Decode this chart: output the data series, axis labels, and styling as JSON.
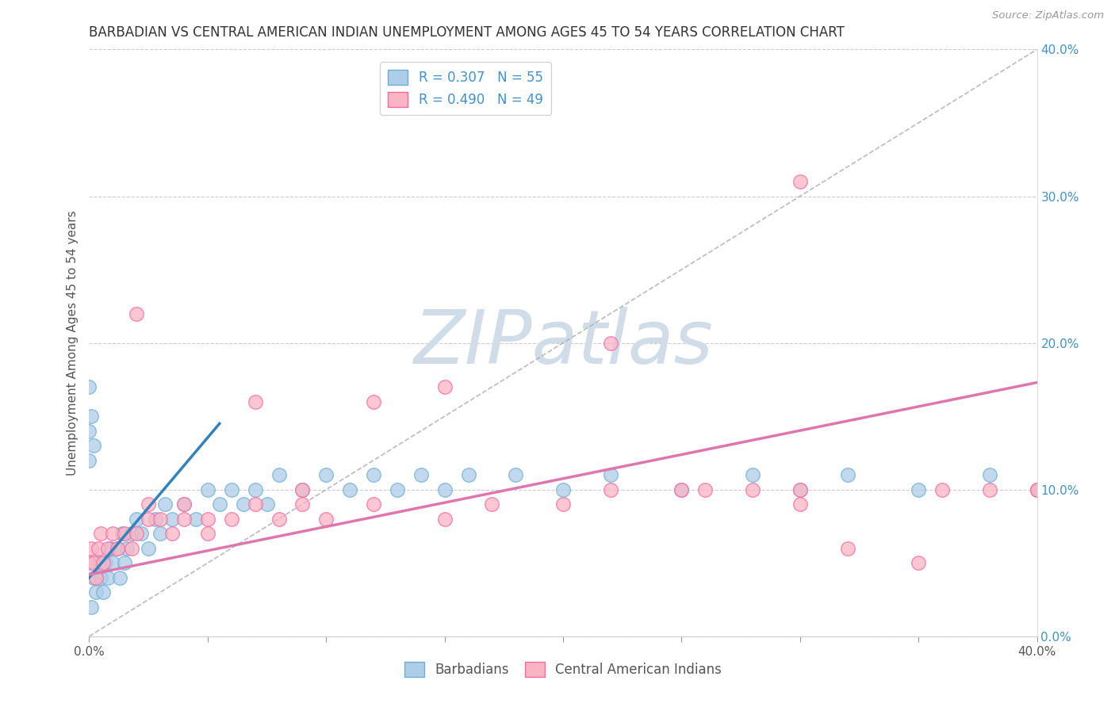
{
  "title": "BARBADIAN VS CENTRAL AMERICAN INDIAN UNEMPLOYMENT AMONG AGES 45 TO 54 YEARS CORRELATION CHART",
  "source": "Source: ZipAtlas.com",
  "ylabel": "Unemployment Among Ages 45 to 54 years",
  "xlim": [
    0,
    0.4
  ],
  "ylim": [
    0,
    0.4
  ],
  "xtick_positions": [
    0.0,
    0.05,
    0.1,
    0.15,
    0.2,
    0.25,
    0.3,
    0.35,
    0.4
  ],
  "xtick_labels": [
    "0.0%",
    "",
    "",
    "",
    "",
    "",
    "",
    "",
    "40.0%"
  ],
  "ytick_positions": [
    0.0,
    0.1,
    0.2,
    0.3,
    0.4
  ],
  "ytick_labels_right": [
    "0.0%",
    "10.0%",
    "20.0%",
    "30.0%",
    "40.0%"
  ],
  "barbadian_R": "0.307",
  "barbadian_N": "55",
  "central_american_R": "0.490",
  "central_american_N": "49",
  "scatter_blue_face": "#aecde8",
  "scatter_blue_edge": "#6baed6",
  "scatter_pink_face": "#fbb4c3",
  "scatter_pink_edge": "#f768a1",
  "trend_blue": "#3182bd",
  "trend_pink": "#de77ae",
  "diag_color": "#aaaaaa",
  "legend_label_color": "#4292c6",
  "right_axis_color": "#4292c6",
  "watermark_text": "ZIPatlas",
  "watermark_color": "#d0dce8",
  "grid_color": "#cccccc",
  "title_color": "#333333",
  "source_color": "#999999",
  "legend1_label1": "R = 0.307   N = 55",
  "legend1_label2": "R = 0.490   N = 49",
  "legend2_label1": "Barbadians",
  "legend2_label2": "Central American Indians",
  "barb_x": [
    0.001,
    0.002,
    0.003,
    0.004,
    0.005,
    0.006,
    0.007,
    0.008,
    0.009,
    0.01,
    0.012,
    0.013,
    0.014,
    0.015,
    0.016,
    0.018,
    0.02,
    0.022,
    0.025,
    0.028,
    0.03,
    0.032,
    0.035,
    0.04,
    0.045,
    0.05,
    0.055,
    0.06,
    0.065,
    0.07,
    0.075,
    0.08,
    0.09,
    0.1,
    0.11,
    0.12,
    0.13,
    0.14,
    0.15,
    0.16,
    0.18,
    0.2,
    0.22,
    0.25,
    0.28,
    0.3,
    0.32,
    0.35,
    0.38,
    0.4,
    0.0,
    0.0,
    0.0,
    0.001,
    0.002
  ],
  "barb_y": [
    0.02,
    0.04,
    0.03,
    0.05,
    0.04,
    0.03,
    0.05,
    0.04,
    0.06,
    0.05,
    0.06,
    0.04,
    0.07,
    0.05,
    0.06,
    0.07,
    0.08,
    0.07,
    0.06,
    0.08,
    0.07,
    0.09,
    0.08,
    0.09,
    0.08,
    0.1,
    0.09,
    0.1,
    0.09,
    0.1,
    0.09,
    0.11,
    0.1,
    0.11,
    0.1,
    0.11,
    0.1,
    0.11,
    0.1,
    0.11,
    0.11,
    0.1,
    0.11,
    0.1,
    0.11,
    0.1,
    0.11,
    0.1,
    0.11,
    0.1,
    0.17,
    0.14,
    0.12,
    0.15,
    0.13
  ],
  "ca_x": [
    0.0,
    0.001,
    0.002,
    0.003,
    0.004,
    0.005,
    0.006,
    0.008,
    0.01,
    0.012,
    0.015,
    0.018,
    0.02,
    0.025,
    0.03,
    0.035,
    0.04,
    0.05,
    0.06,
    0.07,
    0.08,
    0.09,
    0.1,
    0.12,
    0.15,
    0.17,
    0.2,
    0.22,
    0.25,
    0.28,
    0.3,
    0.32,
    0.35,
    0.38,
    0.4,
    0.02,
    0.04,
    0.07,
    0.09,
    0.15,
    0.22,
    0.26,
    0.3,
    0.36,
    0.4,
    0.025,
    0.05,
    0.12,
    0.3
  ],
  "ca_y": [
    0.05,
    0.06,
    0.05,
    0.04,
    0.06,
    0.07,
    0.05,
    0.06,
    0.07,
    0.06,
    0.07,
    0.06,
    0.07,
    0.08,
    0.08,
    0.07,
    0.08,
    0.07,
    0.08,
    0.09,
    0.08,
    0.09,
    0.08,
    0.09,
    0.08,
    0.09,
    0.09,
    0.1,
    0.1,
    0.1,
    0.1,
    0.06,
    0.05,
    0.1,
    0.1,
    0.22,
    0.09,
    0.16,
    0.1,
    0.17,
    0.2,
    0.1,
    0.31,
    0.1,
    0.1,
    0.09,
    0.08,
    0.16,
    0.09
  ],
  "blue_trend_x0": 0.0,
  "blue_trend_x1": 0.055,
  "blue_trend_y0": 0.04,
  "blue_trend_y1": 0.145,
  "pink_trend_x0": 0.0,
  "pink_trend_x1": 0.4,
  "pink_trend_y0": 0.042,
  "pink_trend_y1": 0.173
}
